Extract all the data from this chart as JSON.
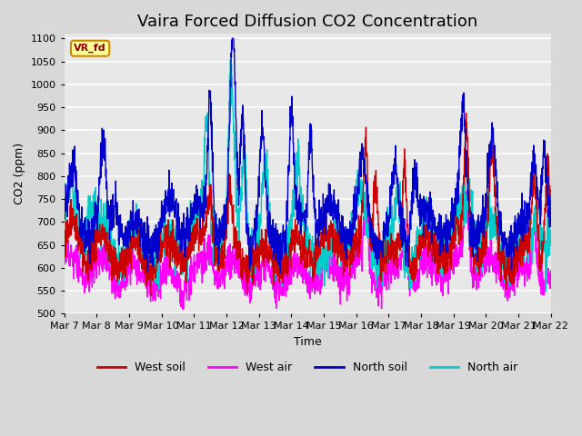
{
  "title": "Vaira Forced Diffusion CO2 Concentration",
  "xlabel": "Time",
  "ylabel": "CO2 (ppm)",
  "ylim": [
    500,
    1110
  ],
  "yticks": [
    500,
    550,
    600,
    650,
    700,
    750,
    800,
    850,
    900,
    950,
    1000,
    1050,
    1100
  ],
  "legend_labels": [
    "West soil",
    "West air",
    "North soil",
    "North air"
  ],
  "legend_colors": [
    "#cc0000",
    "#ff00ff",
    "#0000cc",
    "#00cccc"
  ],
  "watermark_text": "VR_fd",
  "watermark_bg": "#ffff99",
  "watermark_border": "#cc8800",
  "background_color": "#d8d8d8",
  "plot_bg_color": "#e8e8e8",
  "grid_color": "#ffffff",
  "title_fontsize": 13,
  "num_points": 2000,
  "num_days": 15
}
